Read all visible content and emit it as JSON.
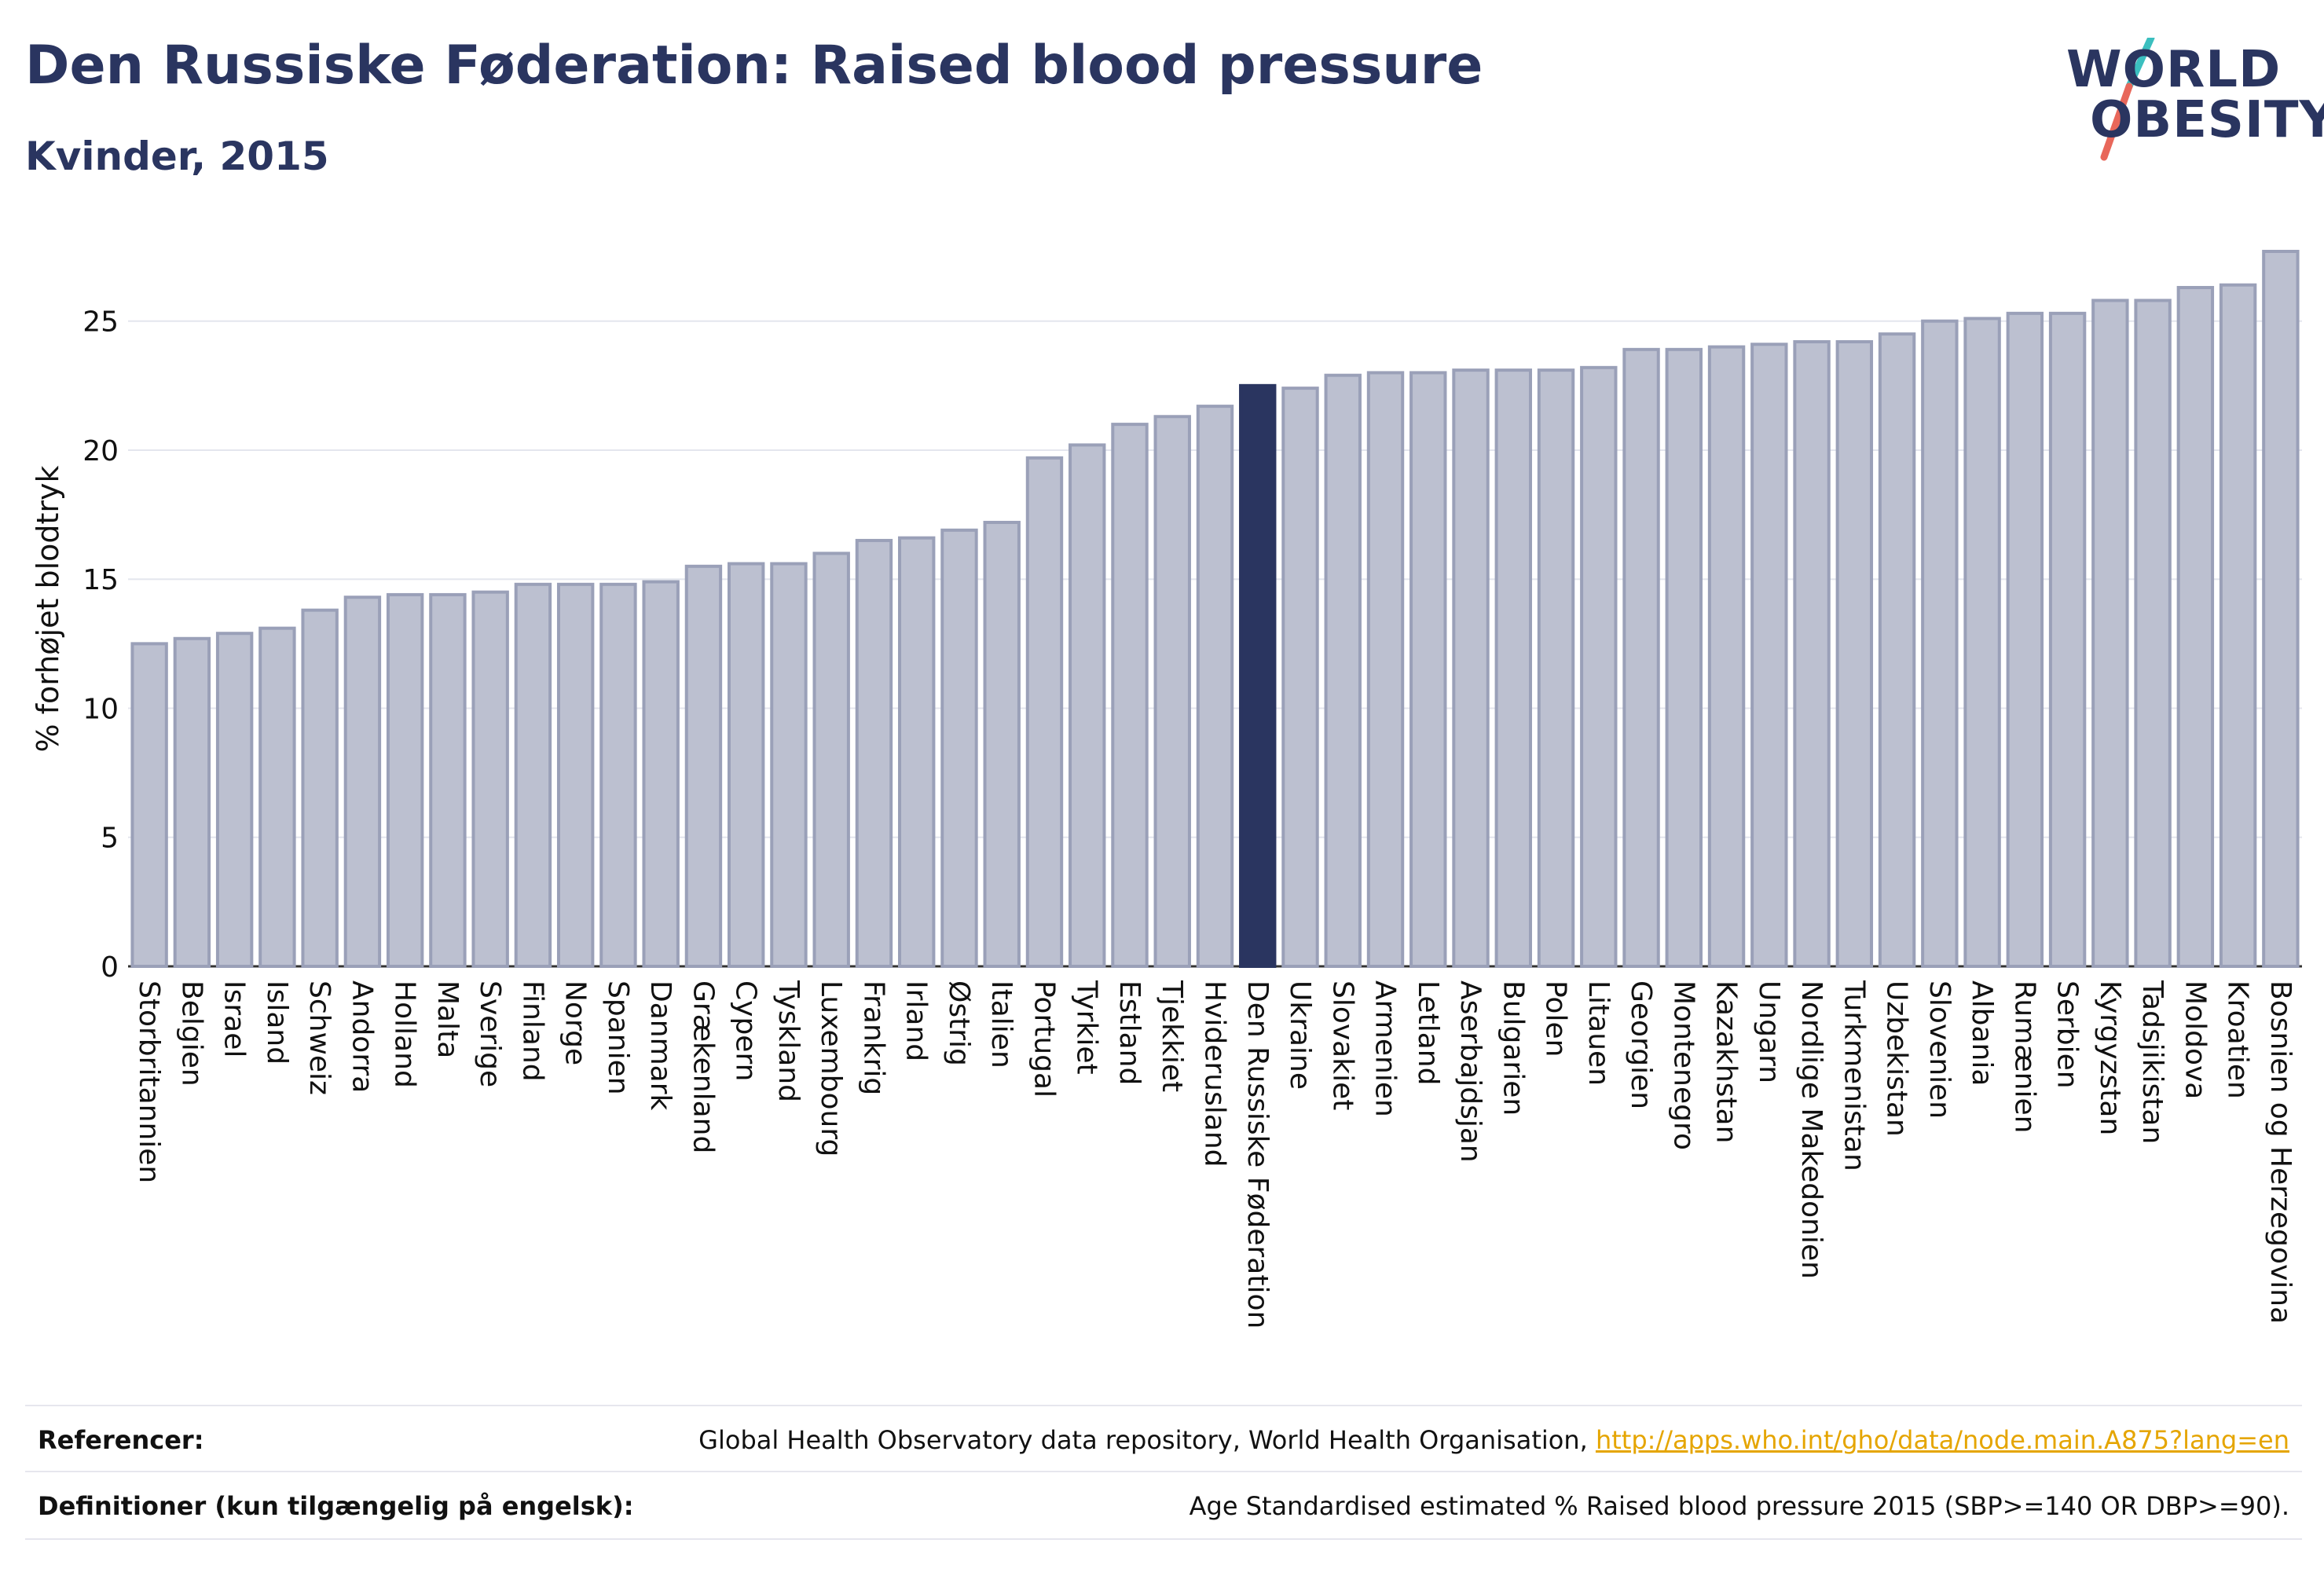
{
  "header": {
    "title": "Den Russiske Føderation: Raised blood pressure",
    "subtitle": "Kvinder, 2015"
  },
  "logo": {
    "line1": "WORLD",
    "line2": "OBESITY"
  },
  "colors": {
    "bar": "#bcc0d0",
    "bar_border": "#9aa0b8",
    "highlight": "#2a3560",
    "logo_slash_top": "#3bbfbf",
    "logo_slash_bottom": "#e8675a",
    "link": "#e5a500"
  },
  "chart_data": {
    "type": "bar",
    "title": "Den Russiske Føderation: Raised blood pressure",
    "subtitle": "Kvinder, 2015",
    "xlabel": "",
    "ylabel": "% forhøjet blodtryk",
    "ylim": [
      0,
      27.7
    ],
    "yticks": [
      0,
      5,
      10,
      15,
      20,
      25
    ],
    "grid": true,
    "highlight_category": "Den Russiske Føderation",
    "categories": [
      "Storbritannien",
      "Belgien",
      "Israel",
      "Island",
      "Schweiz",
      "Andorra",
      "Holland",
      "Malta",
      "Sverige",
      "Finland",
      "Norge",
      "Spanien",
      "Danmark",
      "Grækenland",
      "Cypern",
      "Tyskland",
      "Luxembourg",
      "Frankrig",
      "Irland",
      "Østrig",
      "Italien",
      "Portugal",
      "Tyrkiet",
      "Estland",
      "Tjekkiet",
      "Hviderusland",
      "Den Russiske Føderation",
      "Ukraine",
      "Slovakiet",
      "Armenien",
      "Letland",
      "Aserbajdsjan",
      "Bulgarien",
      "Polen",
      "Litauen",
      "Georgien",
      "Montenegro",
      "Kazakhstan",
      "Ungarn",
      "Nordlige Makedonien",
      "Turkmenistan",
      "Uzbekistan",
      "Slovenien",
      "Albania",
      "Rumænien",
      "Serbien",
      "Kyrgyzstan",
      "Tadsjikistan",
      "Moldova",
      "Kroatien",
      "Bosnien og Herzegovina"
    ],
    "values": [
      12.5,
      12.7,
      12.9,
      13.1,
      13.8,
      14.3,
      14.4,
      14.4,
      14.5,
      14.8,
      14.8,
      14.8,
      14.9,
      15.5,
      15.6,
      15.6,
      16.0,
      16.5,
      16.6,
      16.9,
      17.2,
      19.7,
      20.2,
      21.0,
      21.3,
      21.7,
      22.5,
      22.4,
      22.9,
      23.0,
      23.0,
      23.1,
      23.1,
      23.1,
      23.2,
      23.9,
      23.9,
      24.0,
      24.1,
      24.2,
      24.2,
      24.5,
      25.0,
      25.1,
      25.3,
      25.3,
      25.8,
      25.8,
      26.3,
      26.4,
      27.7
    ]
  },
  "footer": {
    "references_label": "Referencer:",
    "references_text": "Global Health Observatory data repository, World Health Organisation, ",
    "references_link": "http://apps.who.int/gho/data/node.main.A875?lang=en",
    "definitions_label": "Definitioner (kun tilgængelig på engelsk):",
    "definitions_text": "Age Standardised estimated % Raised blood pressure 2015 (SBP>=140 OR DBP>=90)."
  }
}
